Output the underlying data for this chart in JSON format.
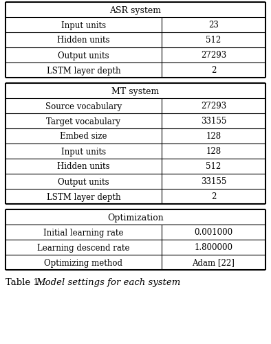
{
  "asr_header": "ASR system",
  "asr_rows": [
    [
      "Input units",
      "23"
    ],
    [
      "Hidden units",
      "512"
    ],
    [
      "Output units",
      "27293"
    ],
    [
      "LSTM layer depth",
      "2"
    ]
  ],
  "mt_header": "MT system",
  "mt_rows": [
    [
      "Source vocabulary",
      "27293"
    ],
    [
      "Target vocabulary",
      "33155"
    ],
    [
      "Embed size",
      "128"
    ],
    [
      "Input units",
      "128"
    ],
    [
      "Hidden units",
      "512"
    ],
    [
      "Output units",
      "33155"
    ],
    [
      "LSTM layer depth",
      "2"
    ]
  ],
  "opt_header": "Optimization",
  "opt_rows": [
    [
      "Initial learning rate",
      "0.001000"
    ],
    [
      "Learning descend rate",
      "1.800000"
    ],
    [
      "Optimizing method",
      "Adam [22]"
    ]
  ],
  "caption_normal": "Table 1: ",
  "caption_italic": "Model settings for each system",
  "bg_color": "#ffffff",
  "text_color": "#000000",
  "line_color": "#000000",
  "font_size": 8.5,
  "header_font_size": 9.0,
  "caption_font_size": 9.5
}
